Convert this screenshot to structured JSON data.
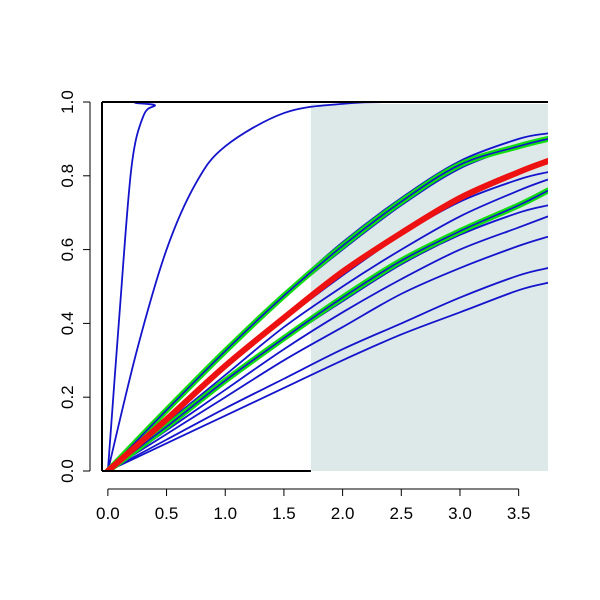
{
  "chart_data": {
    "type": "line",
    "title": "",
    "xlabel": "",
    "ylabel": "",
    "xlim": [
      -0.05,
      3.75
    ],
    "ylim": [
      0,
      1
    ],
    "x_ticks": [
      "0.0",
      "0.5",
      "1.0",
      "1.5",
      "2.0",
      "2.5",
      "3.0",
      "3.5"
    ],
    "y_ticks": [
      "0.0",
      "0.2",
      "0.4",
      "0.6",
      "0.8",
      "1.0"
    ],
    "shaded_region": {
      "x_from": 1.73,
      "x_to": 3.75,
      "color": "#dde9e9"
    },
    "colors": {
      "line": "#1414cc",
      "highlight": "#ee1111",
      "band": "#11dd11",
      "frame": "#000000"
    },
    "series": [
      {
        "role": "line",
        "points": [
          [
            0,
            0
          ],
          [
            0.1,
            0.43
          ],
          [
            0.2,
            0.82
          ],
          [
            0.3,
            0.96
          ],
          [
            0.4,
            0.99
          ],
          [
            0.5,
            1.0
          ],
          [
            3.75,
            1.0
          ]
        ]
      },
      {
        "role": "line",
        "points": [
          [
            0,
            0
          ],
          [
            0.25,
            0.33
          ],
          [
            0.5,
            0.6
          ],
          [
            0.75,
            0.78
          ],
          [
            1.0,
            0.88
          ],
          [
            1.5,
            0.97
          ],
          [
            2.0,
            0.995
          ],
          [
            2.5,
            1.0
          ],
          [
            3.75,
            1.0
          ]
        ]
      },
      {
        "role": "line",
        "points": [
          [
            0,
            0
          ],
          [
            0.5,
            0.17
          ],
          [
            1.0,
            0.33
          ],
          [
            1.5,
            0.48
          ],
          [
            2.0,
            0.62
          ],
          [
            2.5,
            0.74
          ],
          [
            3.0,
            0.84
          ],
          [
            3.5,
            0.9
          ],
          [
            3.75,
            0.915
          ]
        ]
      },
      {
        "role": "line",
        "points": [
          [
            0,
            0
          ],
          [
            0.5,
            0.16
          ],
          [
            1.0,
            0.32
          ],
          [
            1.5,
            0.47
          ],
          [
            2.0,
            0.6
          ],
          [
            2.5,
            0.72
          ],
          [
            3.0,
            0.82
          ],
          [
            3.5,
            0.88
          ],
          [
            3.75,
            0.9
          ]
        ]
      },
      {
        "role": "line",
        "points": [
          [
            0,
            0
          ],
          [
            0.5,
            0.14
          ],
          [
            1.0,
            0.28
          ],
          [
            1.5,
            0.41
          ],
          [
            2.0,
            0.53
          ],
          [
            2.5,
            0.64
          ],
          [
            3.0,
            0.73
          ],
          [
            3.5,
            0.79
          ],
          [
            3.75,
            0.81
          ]
        ]
      },
      {
        "role": "line",
        "points": [
          [
            0,
            0
          ],
          [
            0.5,
            0.13
          ],
          [
            1.0,
            0.26
          ],
          [
            1.5,
            0.39
          ],
          [
            2.0,
            0.5
          ],
          [
            2.5,
            0.6
          ],
          [
            3.0,
            0.69
          ],
          [
            3.5,
            0.76
          ],
          [
            3.75,
            0.79
          ]
        ]
      },
      {
        "role": "line",
        "points": [
          [
            0,
            0
          ],
          [
            0.5,
            0.12
          ],
          [
            1.0,
            0.24
          ],
          [
            1.5,
            0.355
          ],
          [
            2.0,
            0.46
          ],
          [
            2.5,
            0.56
          ],
          [
            3.0,
            0.64
          ],
          [
            3.5,
            0.7
          ],
          [
            3.75,
            0.72
          ]
        ]
      },
      {
        "role": "line",
        "points": [
          [
            0,
            0
          ],
          [
            0.5,
            0.11
          ],
          [
            1.0,
            0.22
          ],
          [
            1.5,
            0.33
          ],
          [
            2.0,
            0.43
          ],
          [
            2.5,
            0.52
          ],
          [
            3.0,
            0.6
          ],
          [
            3.5,
            0.66
          ],
          [
            3.75,
            0.69
          ]
        ]
      },
      {
        "role": "line",
        "points": [
          [
            0,
            0
          ],
          [
            0.5,
            0.1
          ],
          [
            1.0,
            0.2
          ],
          [
            1.5,
            0.3
          ],
          [
            2.0,
            0.39
          ],
          [
            2.5,
            0.48
          ],
          [
            3.0,
            0.55
          ],
          [
            3.5,
            0.61
          ],
          [
            3.75,
            0.635
          ]
        ]
      },
      {
        "role": "line",
        "points": [
          [
            0,
            0
          ],
          [
            0.5,
            0.085
          ],
          [
            1.0,
            0.17
          ],
          [
            1.5,
            0.25
          ],
          [
            2.0,
            0.33
          ],
          [
            2.5,
            0.4
          ],
          [
            3.0,
            0.47
          ],
          [
            3.5,
            0.53
          ],
          [
            3.75,
            0.55
          ]
        ]
      },
      {
        "role": "line",
        "points": [
          [
            0,
            0
          ],
          [
            0.5,
            0.075
          ],
          [
            1.0,
            0.15
          ],
          [
            1.5,
            0.225
          ],
          [
            2.0,
            0.3
          ],
          [
            2.5,
            0.37
          ],
          [
            3.0,
            0.43
          ],
          [
            3.5,
            0.49
          ],
          [
            3.75,
            0.51
          ]
        ]
      },
      {
        "role": "band",
        "points": [
          [
            0,
            0
          ],
          [
            0.5,
            0.165
          ],
          [
            1.0,
            0.325
          ],
          [
            1.5,
            0.475
          ],
          [
            2.0,
            0.61
          ],
          [
            2.5,
            0.73
          ],
          [
            3.0,
            0.83
          ],
          [
            3.5,
            0.88
          ],
          [
            3.75,
            0.9
          ]
        ]
      },
      {
        "role": "band",
        "points": [
          [
            0,
            0
          ],
          [
            0.5,
            0.12
          ],
          [
            1.0,
            0.245
          ],
          [
            1.5,
            0.36
          ],
          [
            2.0,
            0.47
          ],
          [
            2.5,
            0.57
          ],
          [
            3.0,
            0.65
          ],
          [
            3.5,
            0.72
          ],
          [
            3.75,
            0.76
          ]
        ]
      },
      {
        "role": "highlight",
        "points": [
          [
            0,
            0
          ],
          [
            0.5,
            0.14
          ],
          [
            1.0,
            0.285
          ],
          [
            1.5,
            0.415
          ],
          [
            2.0,
            0.54
          ],
          [
            2.5,
            0.645
          ],
          [
            3.0,
            0.74
          ],
          [
            3.5,
            0.81
          ],
          [
            3.75,
            0.84
          ]
        ]
      }
    ]
  }
}
